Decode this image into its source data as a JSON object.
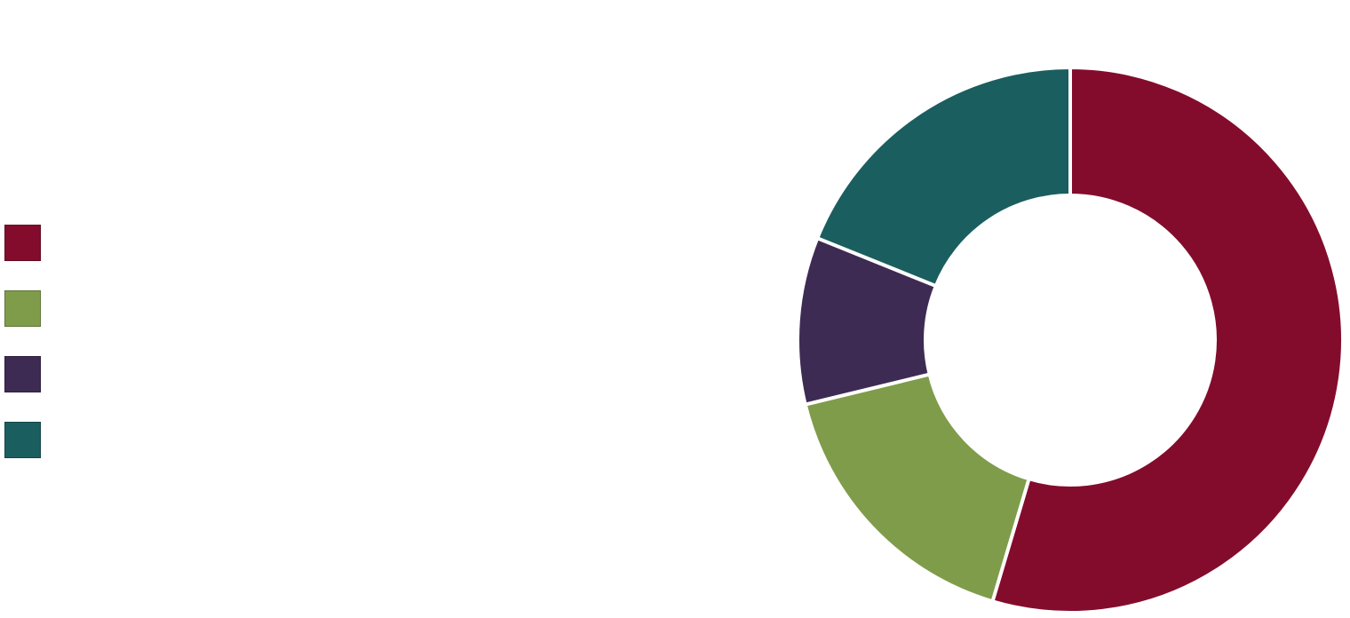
{
  "chart_data": {
    "type": "pie",
    "variant": "donut",
    "title": "",
    "start_angle": "top, clockwise",
    "legend_placement": "left",
    "series": [
      {
        "value": 54.6,
        "color": "#830C2C"
      },
      {
        "value": 16.6,
        "color": "#7F9C4A"
      },
      {
        "value": 9.9,
        "color": "#3E2B54"
      },
      {
        "value": 18.9,
        "color": "#1B5E5F"
      }
    ]
  }
}
